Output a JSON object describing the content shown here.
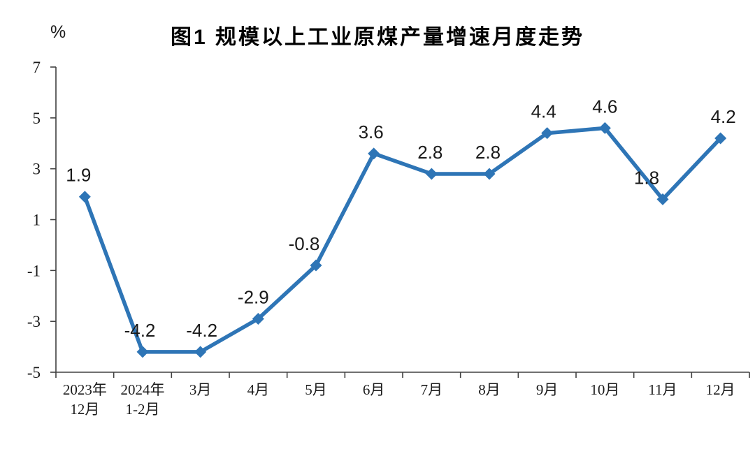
{
  "page": {
    "background": "#ffffff"
  },
  "header": {
    "title": "图1  规模以上工业原煤产量增速月度走势",
    "unit_label": "%"
  },
  "chart_data": {
    "type": "line",
    "title": "图1  规模以上工业原煤产量增速月度走势",
    "unit_label": "%",
    "categories": [
      "2023年\n12月",
      "2024年\n1-2月",
      "3月",
      "4月",
      "5月",
      "6月",
      "7月",
      "8月",
      "9月",
      "10月",
      "11月",
      "12月"
    ],
    "values": [
      1.9,
      -4.2,
      -4.2,
      -2.9,
      -0.8,
      3.6,
      2.8,
      2.8,
      4.4,
      4.6,
      1.8,
      4.2
    ],
    "data_labels": [
      "1.9",
      "-4.2",
      "-4.2",
      "-2.9",
      "-0.8",
      "3.6",
      "2.8",
      "2.8",
      "4.4",
      "4.6",
      "1.8",
      "4.2"
    ],
    "y_ticks": [
      7,
      5,
      3,
      1,
      -1,
      -3,
      -5
    ],
    "ylim": [
      -5,
      7
    ],
    "xlabel": "",
    "ylabel": "%",
    "grid": false,
    "legend": "none",
    "marker": "diamond",
    "line_color": "#2E75B6",
    "axis_color": "#404040",
    "text_color": "#1a1a1a",
    "label_dx": [
      -9,
      -4,
      2,
      -7,
      -17,
      -4,
      -2,
      -2,
      -5,
      0,
      -23,
      4
    ],
    "label_dy": -22
  }
}
